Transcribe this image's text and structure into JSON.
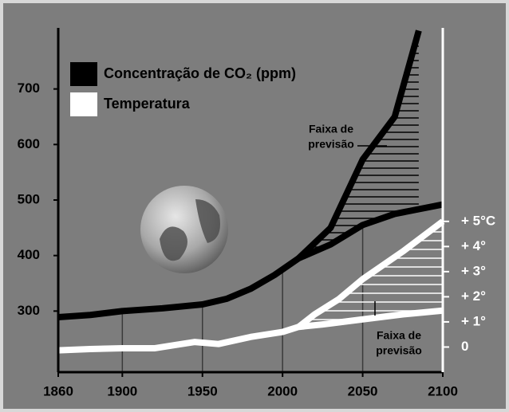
{
  "chart_data": {
    "type": "line",
    "legend_position": "upper left",
    "x_ticks_numeric": true,
    "xlim": [
      1860,
      2100
    ],
    "xticks": [
      1860,
      1900,
      1950,
      2000,
      2050,
      2100
    ],
    "ylim": [
      190,
      810
    ],
    "yticks": [
      300,
      400,
      500,
      600,
      700
    ],
    "y2lim": [
      -1,
      12.7
    ],
    "y2ticks": [
      0,
      {
        "value": 1,
        "label": "+ 1°"
      },
      {
        "value": 2,
        "label": "+ 2°"
      },
      {
        "value": 3,
        "label": "+ 3°"
      },
      {
        "value": 4,
        "label": "+ 4°"
      },
      {
        "value": 5,
        "label": "+ 5°C"
      }
    ],
    "series": [
      {
        "name": "Concentração de CO₂ (ppm)",
        "color": "#000000",
        "x": [
          1860,
          1880,
          1900,
          1925,
          1950,
          1965,
          1980,
          1995,
          2010,
          2030,
          2050,
          2070,
          2100
        ],
        "values": [
          289,
          293,
          300,
          305,
          312,
          322,
          340,
          365,
          395,
          420,
          455,
          475,
          492
        ]
      },
      {
        "color": "#000000",
        "x": [
          2010,
          2030,
          2050,
          2070,
          2085
        ],
        "values": [
          395,
          450,
          573,
          650,
          805
        ]
      },
      {
        "name": "Temperatura",
        "color": "#ffffff",
        "axis": "y2",
        "x": [
          1860,
          1880,
          1900,
          1920,
          1935,
          1945,
          1960,
          1980,
          2000,
          2010,
          2025,
          2050,
          2075,
          2100
        ],
        "values": [
          -0.13,
          -0.08,
          -0.05,
          -0.05,
          0.1,
          0.2,
          0.12,
          0.4,
          0.6,
          0.8,
          0.9,
          1.1,
          1.3,
          1.45
        ]
      },
      {
        "color": "#ffffff",
        "axis": "y2",
        "x": [
          2010,
          2020,
          2035,
          2050,
          2075,
          2100
        ],
        "values": [
          0.8,
          1.3,
          1.9,
          2.7,
          3.8,
          5.0
        ]
      }
    ],
    "annotations": [
      [
        "Faixa de",
        "previsão"
      ],
      [
        "Faixa de",
        "previsão"
      ]
    ]
  }
}
